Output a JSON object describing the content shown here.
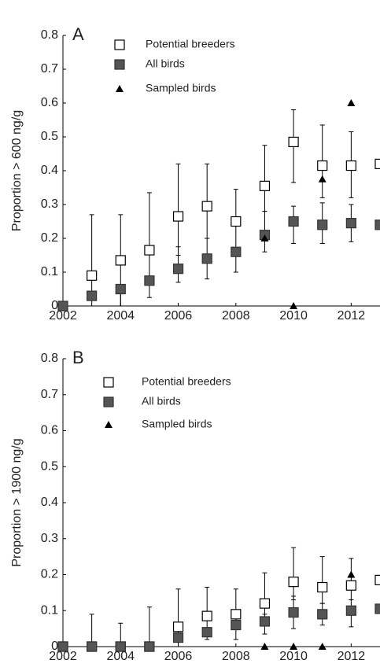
{
  "chart_data": [
    {
      "type": "scatter",
      "panel_label": "A",
      "ylabel": "Proportion > 600 ng/g",
      "x": [
        2002,
        2003,
        2004,
        2005,
        2006,
        2007,
        2008,
        2009,
        2010,
        2011,
        2012,
        2013
      ],
      "xlim": [
        2002,
        2013
      ],
      "xticks": [
        2002,
        2004,
        2006,
        2008,
        2010,
        2012
      ],
      "ylim": [
        0,
        0.8
      ],
      "yticks": [
        0,
        0.1,
        0.2,
        0.3,
        0.4,
        0.5,
        0.6,
        0.7,
        0.8
      ],
      "series": [
        {
          "name": "Potential breeders",
          "marker": "open-square",
          "color": "#000000",
          "values": [
            null,
            0.09,
            0.135,
            0.165,
            0.265,
            0.295,
            0.25,
            0.355,
            0.485,
            0.415,
            0.415,
            0.42
          ],
          "upper": [
            null,
            0.27,
            0.27,
            0.335,
            0.42,
            0.42,
            0.345,
            0.475,
            0.58,
            0.535,
            0.515,
            null
          ],
          "lower": [
            null,
            0,
            0,
            0.08,
            0.15,
            0.2,
            0.24,
            0.28,
            0.365,
            0.32,
            0.32,
            null
          ]
        },
        {
          "name": "All birds",
          "marker": "filled-square",
          "color": "#555555",
          "values": [
            0,
            0.03,
            0.05,
            0.075,
            0.11,
            0.14,
            0.16,
            0.21,
            0.25,
            0.24,
            0.245,
            0.24
          ],
          "upper": [
            null,
            null,
            null,
            null,
            0.175,
            0.2,
            0.24,
            0.28,
            0.295,
            0.305,
            0.3,
            null
          ],
          "lower": [
            null,
            null,
            0,
            0.025,
            0.07,
            0.08,
            0.1,
            0.16,
            0.185,
            0.185,
            0.19,
            null
          ]
        },
        {
          "name": "Sampled birds",
          "marker": "triangle",
          "color": "#000000",
          "values": [
            null,
            null,
            null,
            null,
            null,
            null,
            null,
            0.2,
            0,
            0.375,
            0.6,
            null
          ]
        }
      ]
    },
    {
      "type": "scatter",
      "panel_label": "B",
      "ylabel": "Proportion > 1900 ng/g",
      "x": [
        2002,
        2003,
        2004,
        2005,
        2006,
        2007,
        2008,
        2009,
        2010,
        2011,
        2012,
        2013
      ],
      "xlim": [
        2002,
        2013
      ],
      "xticks": [
        2002,
        2004,
        2006,
        2008,
        2010,
        2012
      ],
      "ylim": [
        0,
        0.8
      ],
      "yticks": [
        0,
        0.1,
        0.2,
        0.3,
        0.4,
        0.5,
        0.6,
        0.7,
        0.8
      ],
      "series": [
        {
          "name": "Potential breeders",
          "marker": "open-square",
          "color": "#000000",
          "values": [
            0,
            0,
            0,
            0,
            0.055,
            0.085,
            0.09,
            0.12,
            0.18,
            0.165,
            0.17,
            0.185
          ],
          "upper": [
            null,
            0.09,
            0.065,
            0.11,
            0.16,
            0.165,
            0.16,
            0.205,
            0.275,
            0.25,
            0.245,
            null
          ],
          "lower": [
            null,
            null,
            null,
            null,
            0,
            0.04,
            0.05,
            0.07,
            0.13,
            0.12,
            0.13,
            null
          ]
        },
        {
          "name": "All birds",
          "marker": "filled-square",
          "color": "#555555",
          "values": [
            0,
            0,
            0,
            0,
            0.025,
            0.04,
            0.06,
            0.07,
            0.095,
            0.09,
            0.1,
            0.105
          ],
          "upper": [
            null,
            null,
            null,
            null,
            null,
            null,
            0.08,
            0.09,
            0.14,
            0.12,
            0.13,
            null
          ],
          "lower": [
            null,
            null,
            null,
            null,
            0,
            0.02,
            0.02,
            0.035,
            0.05,
            0.06,
            0.055,
            null
          ]
        },
        {
          "name": "Sampled birds",
          "marker": "triangle",
          "color": "#000000",
          "values": [
            null,
            null,
            null,
            null,
            null,
            null,
            null,
            0,
            0,
            0,
            0.2,
            null
          ]
        }
      ]
    }
  ]
}
